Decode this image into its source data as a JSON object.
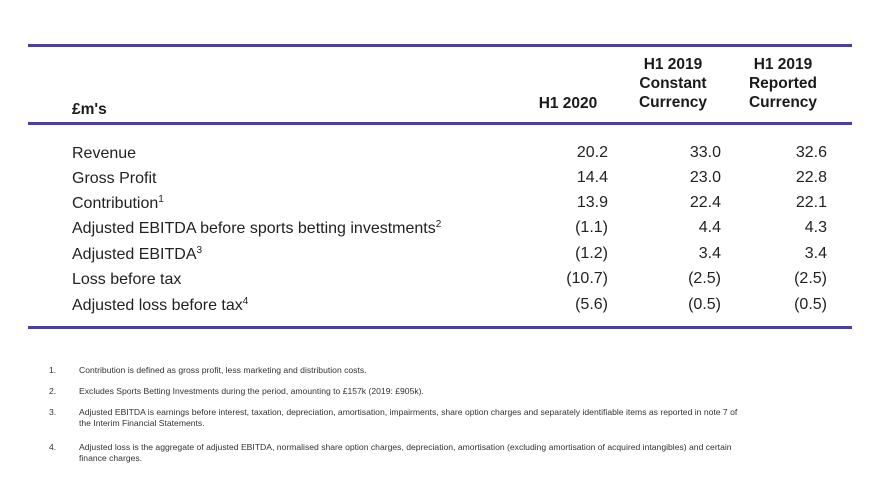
{
  "header": {
    "label": "£m's",
    "col1": "H1 2020",
    "col2_line1": "H1 2019",
    "col2_line2": "Constant",
    "col2_line3": "Currency",
    "col3_line1": "H1 2019",
    "col3_line2": "Reported",
    "col3_line3": "Currency"
  },
  "rows": [
    {
      "label": "Revenue",
      "sup": "",
      "h1_2020": "20.2",
      "h1_2019_constant": "33.0",
      "h1_2019_reported": "32.6"
    },
    {
      "label": "Gross Profit",
      "sup": "",
      "h1_2020": "14.4",
      "h1_2019_constant": "23.0",
      "h1_2019_reported": "22.8"
    },
    {
      "label": "Contribution",
      "sup": "1",
      "h1_2020": "13.9",
      "h1_2019_constant": "22.4",
      "h1_2019_reported": "22.1"
    },
    {
      "label": "Adjusted EBITDA before sports betting investments",
      "sup": "2",
      "h1_2020": "(1.1)",
      "h1_2019_constant": "4.4",
      "h1_2019_reported": "4.3"
    },
    {
      "label": "Adjusted EBITDA",
      "sup": "3",
      "h1_2020": "(1.2)",
      "h1_2019_constant": "3.4",
      "h1_2019_reported": "3.4"
    },
    {
      "label": "Loss before tax",
      "sup": "",
      "h1_2020": "(10.7)",
      "h1_2019_constant": "(2.5)",
      "h1_2019_reported": "(2.5)"
    },
    {
      "label": "Adjusted loss before tax",
      "sup": "4",
      "h1_2020": "(5.6)",
      "h1_2019_constant": "(0.5)",
      "h1_2019_reported": "(0.5)"
    }
  ],
  "footnotes": [
    {
      "num": "1.",
      "text": "Contribution is defined as gross profit, less marketing and distribution costs."
    },
    {
      "num": "2.",
      "text": "Excludes Sports Betting Investments during the period, amounting to £157k (2019: £905k)."
    },
    {
      "num": "3.",
      "text": "Adjusted EBITDA is earnings before interest, taxation, depreciation, amortisation, impairments, share option charges and separately identifiable items as reported in note 7 of the Interim Financial Statements."
    },
    {
      "num": "4.",
      "text": "Adjusted loss is the aggregate of adjusted EBITDA, normalised share option charges, depreciation, amortisation (excluding amortisation of acquired intangibles) and certain finance charges."
    }
  ],
  "colors": {
    "rule": "#4b3fa0"
  }
}
